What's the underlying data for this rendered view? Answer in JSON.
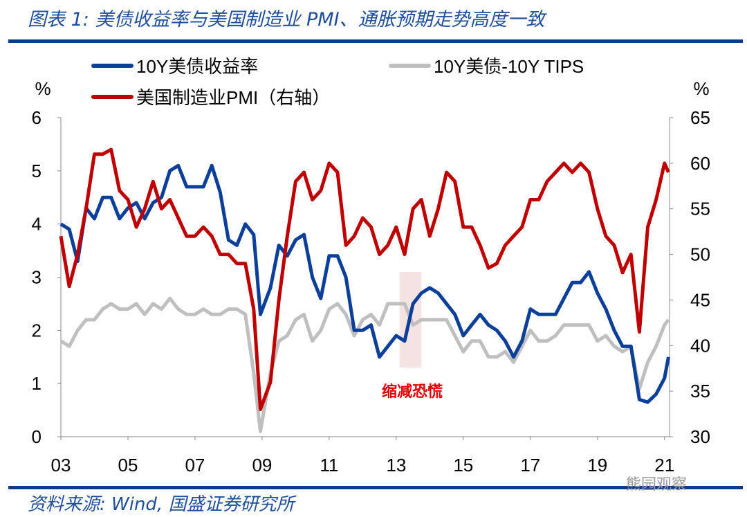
{
  "title": "图表 1:  美债收益率与美国制造业 PMI、通胀预期走势高度一致",
  "source": "资料来源:  Wind,  国盛证券研究所",
  "watermark": "熊园观察",
  "annotation": "缩减恐慌",
  "chart_data": {
    "type": "line",
    "left_unit": "%",
    "right_unit": "%",
    "ylim_left": [
      0,
      6
    ],
    "yticks_left": [
      "0",
      "1",
      "2",
      "3",
      "4",
      "5",
      "6"
    ],
    "ylim_right": [
      30,
      65
    ],
    "yticks_right": [
      "30",
      "35",
      "40",
      "45",
      "50",
      "55",
      "60",
      "65"
    ],
    "xlim": [
      2003,
      2021.15
    ],
    "xticks": [
      "03",
      "05",
      "07",
      "09",
      "11",
      "13",
      "15",
      "17",
      "19",
      "21"
    ],
    "highlight_range": [
      2013.1,
      2013.75
    ],
    "x": [
      2003.0,
      2003.25,
      2003.5,
      2003.75,
      2004.0,
      2004.25,
      2004.5,
      2004.75,
      2005.0,
      2005.25,
      2005.5,
      2005.75,
      2006.0,
      2006.25,
      2006.5,
      2006.75,
      2007.0,
      2007.25,
      2007.5,
      2007.75,
      2008.0,
      2008.25,
      2008.5,
      2008.75,
      2008.95,
      2009.25,
      2009.5,
      2009.75,
      2010.0,
      2010.25,
      2010.5,
      2010.75,
      2011.0,
      2011.25,
      2011.5,
      2011.75,
      2012.0,
      2012.25,
      2012.5,
      2012.75,
      2013.0,
      2013.25,
      2013.5,
      2013.75,
      2014.0,
      2014.25,
      2014.5,
      2014.75,
      2015.0,
      2015.25,
      2015.5,
      2015.75,
      2016.0,
      2016.25,
      2016.5,
      2016.75,
      2017.0,
      2017.25,
      2017.5,
      2017.75,
      2018.0,
      2018.25,
      2018.5,
      2018.75,
      2019.0,
      2019.25,
      2019.5,
      2019.75,
      2020.0,
      2020.25,
      2020.5,
      2020.75,
      2021.0,
      2021.12
    ],
    "series": [
      {
        "name": "10Y美债收益率",
        "axis": "left",
        "color": "#0b3f9a",
        "values": [
          4.0,
          3.9,
          3.3,
          4.3,
          4.1,
          4.5,
          4.5,
          4.1,
          4.3,
          4.4,
          4.1,
          4.4,
          4.5,
          5.0,
          5.1,
          4.7,
          4.7,
          4.7,
          5.1,
          4.6,
          3.7,
          3.6,
          4.0,
          3.8,
          2.3,
          2.8,
          3.6,
          3.4,
          3.7,
          3.8,
          3.0,
          2.6,
          3.4,
          3.4,
          3.0,
          2.0,
          2.0,
          2.1,
          1.5,
          1.7,
          1.9,
          1.8,
          2.5,
          2.7,
          2.8,
          2.7,
          2.5,
          2.3,
          1.9,
          2.1,
          2.3,
          2.1,
          2.0,
          1.8,
          1.5,
          1.8,
          2.4,
          2.3,
          2.3,
          2.3,
          2.6,
          2.9,
          2.9,
          3.1,
          2.7,
          2.4,
          2.0,
          1.7,
          1.7,
          0.7,
          0.65,
          0.8,
          1.1,
          1.5
        ]
      },
      {
        "name": "10Y美债-10Y TIPS",
        "axis": "left",
        "color": "#bfbfbf",
        "values": [
          1.8,
          1.7,
          2.0,
          2.2,
          2.2,
          2.4,
          2.5,
          2.4,
          2.4,
          2.5,
          2.3,
          2.5,
          2.4,
          2.6,
          2.4,
          2.3,
          2.3,
          2.4,
          2.3,
          2.3,
          2.4,
          2.4,
          2.3,
          1.2,
          0.1,
          1.2,
          1.8,
          1.9,
          2.2,
          2.3,
          1.8,
          2.0,
          2.4,
          2.5,
          2.3,
          1.9,
          2.2,
          2.3,
          2.1,
          2.5,
          2.5,
          2.5,
          2.1,
          2.2,
          2.2,
          2.2,
          2.2,
          1.9,
          1.6,
          1.8,
          1.8,
          1.5,
          1.5,
          1.6,
          1.4,
          1.7,
          2.0,
          1.8,
          1.8,
          1.9,
          2.1,
          2.1,
          2.1,
          2.1,
          1.8,
          1.9,
          1.7,
          1.6,
          1.7,
          0.9,
          1.4,
          1.7,
          2.1,
          2.2
        ]
      },
      {
        "name": "美国制造业PMI（右轴）",
        "axis": "right",
        "color": "#c00000",
        "values": [
          52,
          46.5,
          50,
          55,
          61,
          61,
          61.5,
          57,
          56,
          53,
          55,
          58,
          55,
          56,
          54,
          52,
          52,
          53,
          52,
          50,
          50,
          49,
          49,
          44,
          33,
          36,
          45,
          52,
          58,
          59,
          56,
          57,
          60,
          59,
          51,
          52,
          54,
          53,
          50,
          51,
          53,
          50,
          55,
          56,
          52,
          55,
          59,
          58,
          53,
          53,
          51,
          48.5,
          49,
          51,
          52,
          53,
          56,
          56,
          58,
          59,
          60,
          59,
          60,
          59,
          55,
          52,
          51,
          48,
          50,
          41.5,
          53,
          56,
          60,
          59
        ]
      }
    ]
  }
}
